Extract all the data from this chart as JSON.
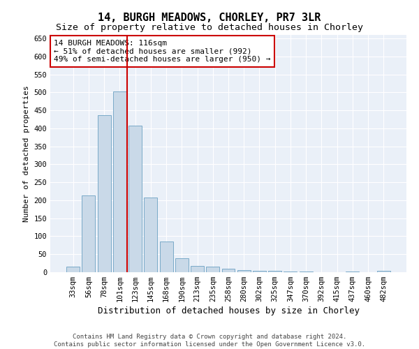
{
  "title": "14, BURGH MEADOWS, CHORLEY, PR7 3LR",
  "subtitle": "Size of property relative to detached houses in Chorley",
  "xlabel": "Distribution of detached houses by size in Chorley",
  "ylabel": "Number of detached properties",
  "bar_labels": [
    "33sqm",
    "56sqm",
    "78sqm",
    "101sqm",
    "123sqm",
    "145sqm",
    "168sqm",
    "190sqm",
    "213sqm",
    "235sqm",
    "258sqm",
    "280sqm",
    "302sqm",
    "325sqm",
    "347sqm",
    "370sqm",
    "392sqm",
    "415sqm",
    "437sqm",
    "460sqm",
    "482sqm"
  ],
  "bar_values": [
    15,
    213,
    437,
    503,
    407,
    207,
    85,
    38,
    17,
    15,
    10,
    6,
    4,
    4,
    1,
    1,
    0,
    0,
    1,
    0,
    4
  ],
  "bar_color": "#c9d9e8",
  "bar_edge_color": "#7aaac8",
  "property_line_color": "#cc0000",
  "annotation_text": "14 BURGH MEADOWS: 116sqm\n← 51% of detached houses are smaller (992)\n49% of semi-detached houses are larger (950) →",
  "annotation_box_color": "#ffffff",
  "annotation_box_edge_color": "#cc0000",
  "ylim": [
    0,
    660
  ],
  "yticks": [
    0,
    50,
    100,
    150,
    200,
    250,
    300,
    350,
    400,
    450,
    500,
    550,
    600,
    650
  ],
  "background_color": "#ffffff",
  "plot_bg_color": "#eaf0f8",
  "grid_color": "#ffffff",
  "footer_text": "Contains HM Land Registry data © Crown copyright and database right 2024.\nContains public sector information licensed under the Open Government Licence v3.0.",
  "title_fontsize": 11,
  "subtitle_fontsize": 9.5,
  "xlabel_fontsize": 9,
  "ylabel_fontsize": 8,
  "tick_fontsize": 7.5,
  "footer_fontsize": 6.5,
  "annotation_fontsize": 8
}
